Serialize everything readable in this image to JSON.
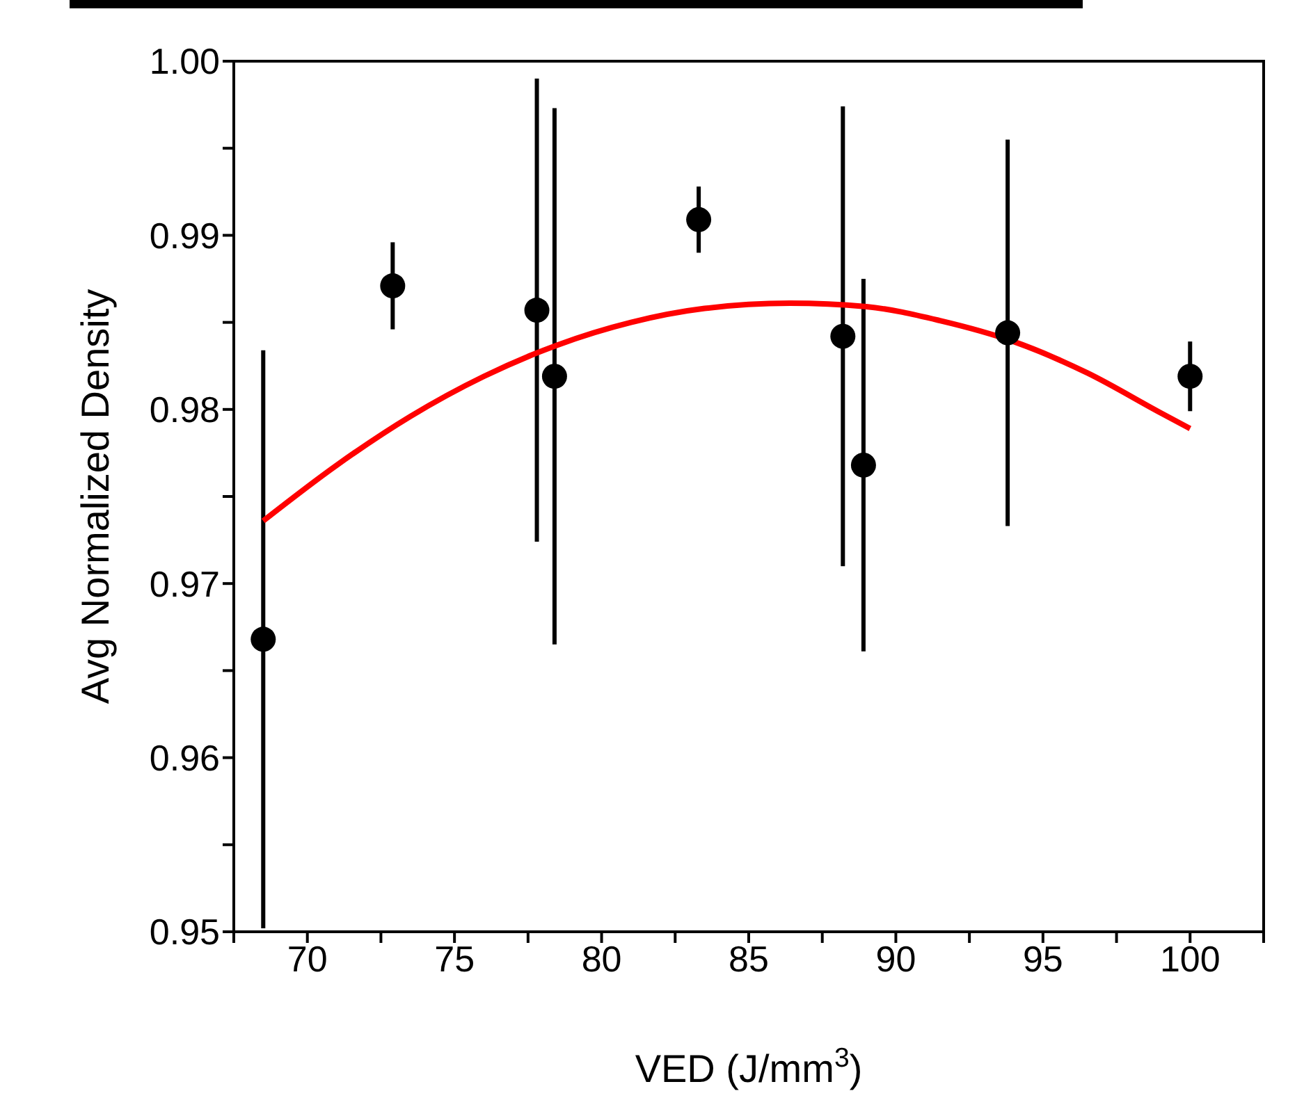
{
  "chart_data": {
    "type": "scatter",
    "xlabel": "VED (J/mm$^{3}$)",
    "ylabel": "Avg Normalized Density",
    "xlim": [
      67.5,
      102.5
    ],
    "xticks": [
      {
        "value": 67.5,
        "label": null
      },
      70,
      {
        "value": 72.5,
        "label": null
      },
      75,
      {
        "value": 77.5,
        "label": null
      },
      80,
      {
        "value": 82.5,
        "label": null
      },
      85,
      {
        "value": 87.5,
        "label": null
      },
      90,
      {
        "value": 92.5,
        "label": null
      },
      95,
      {
        "value": 97.5,
        "label": null
      },
      100,
      {
        "value": 102.5,
        "label": null
      }
    ],
    "ylim": [
      0.95,
      1.0
    ],
    "yticks": [
      0.95,
      {
        "value": 0.955,
        "label": null
      },
      0.96,
      {
        "value": 0.965,
        "label": null
      },
      0.97,
      {
        "value": 0.975,
        "label": null
      },
      0.98,
      {
        "value": 0.985,
        "label": null
      },
      0.99,
      {
        "value": 0.995,
        "label": null
      },
      {
        "value": 1.0,
        "label": "1.00"
      }
    ],
    "series": [
      {
        "color": "#000000",
        "marker": "circle",
        "x": [
          68.5,
          72.9,
          77.8,
          78.4,
          83.3,
          88.2,
          88.9,
          93.8,
          100.0
        ],
        "values": [
          0.9668,
          0.9871,
          0.9857,
          0.9819,
          0.9909,
          0.9842,
          0.9768,
          0.9844,
          0.9819
        ],
        "errors": [
          0.0166,
          0.0025,
          0.0133,
          0.0154,
          0.0019,
          0.0132,
          0.0107,
          0.0111,
          0.002
        ]
      },
      {
        "type": "line",
        "color": "#ff0000",
        "marker": "none",
        "line_style": "solid",
        "x": [
          68.5,
          71,
          73.5,
          76,
          78.5,
          81,
          83.5,
          86.4,
          89,
          91.5,
          94,
          96.5,
          99,
          100
        ],
        "values": [
          0.9736,
          0.9768,
          0.9796,
          0.9819,
          0.9837,
          0.985,
          0.9858,
          0.9861,
          0.9859,
          0.9851,
          0.9839,
          0.9821,
          0.9798,
          0.9789
        ]
      }
    ]
  }
}
